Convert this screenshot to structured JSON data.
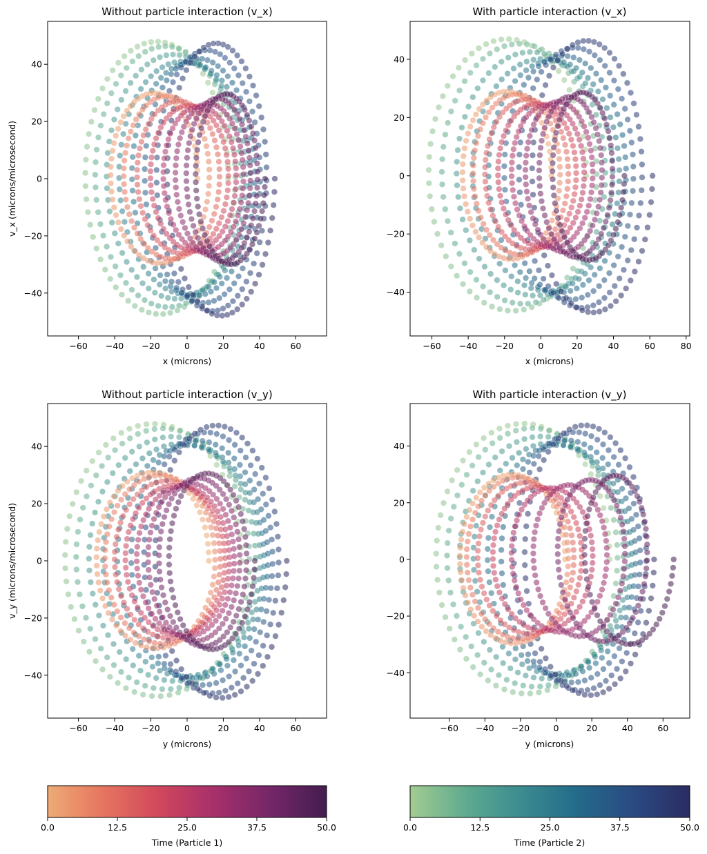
{
  "chart_data": [
    {
      "type": "scatter",
      "title": "Without particle interaction (v_x)",
      "xlabel": "x (microns)",
      "ylabel": "v_x (microns/microsecond)",
      "xlim": [
        -77,
        77
      ],
      "ylim": [
        -55,
        55
      ],
      "xticks": [
        -60,
        -40,
        -20,
        0,
        20,
        40,
        60
      ],
      "yticks": [
        -40,
        -20,
        0,
        20,
        40
      ],
      "grid": false,
      "time_range": [
        0,
        50
      ],
      "series": [
        {
          "particle": 1,
          "colormap": "particle1",
          "amplitude": 33,
          "vmax": 30,
          "center_start": -20,
          "center_end": 25,
          "center_mid": 8,
          "ang_freq": 1.0,
          "turns": 8
        },
        {
          "particle": 2,
          "colormap": "particle2",
          "amplitude": 52,
          "vmax": 48,
          "center_start": -18,
          "center_end": 20,
          "center_mid": 0,
          "ang_freq": 1.0,
          "turns": 8
        }
      ]
    },
    {
      "type": "scatter",
      "title": "With particle interaction (v_x)",
      "xlabel": "x (microns)",
      "ylabel": "",
      "xlim": [
        -72,
        82
      ],
      "ylim": [
        -55,
        53
      ],
      "xticks": [
        -60,
        -40,
        -20,
        0,
        20,
        40,
        60,
        80
      ],
      "yticks": [
        -40,
        -20,
        0,
        20,
        40
      ],
      "grid": false,
      "time_range": [
        0,
        50
      ],
      "series": [
        {
          "particle": 1,
          "colormap": "particle1",
          "amplitude": 33,
          "vmax": 29,
          "center_start": -20,
          "center_end": 28,
          "center_mid": 0,
          "ang_freq": 1.0,
          "turns": 8
        },
        {
          "particle": 2,
          "colormap": "particle2",
          "amplitude": 45,
          "vmax": 47,
          "center_start": -20,
          "center_end": 30,
          "center_mid": 5,
          "ang_freq": 1.0,
          "turns": 8
        }
      ]
    },
    {
      "type": "scatter",
      "title": "Without particle interaction (v_y)",
      "xlabel": "y (microns)",
      "ylabel": "v_y (microns/microsecond)",
      "xlim": [
        -77,
        77
      ],
      "ylim": [
        -55,
        55
      ],
      "xticks": [
        -60,
        -40,
        -20,
        0,
        20,
        40,
        60
      ],
      "yticks": [
        -40,
        -20,
        0,
        20,
        40
      ],
      "grid": false,
      "time_range": [
        0,
        50
      ],
      "series": [
        {
          "particle": 1,
          "colormap": "particle1",
          "amplitude": 32,
          "vmax": 31,
          "center_start": -20,
          "center_end": 15,
          "center_mid": -5,
          "ang_freq": 1.0,
          "turns": 8
        },
        {
          "particle": 2,
          "colormap": "particle2",
          "amplitude": 50,
          "vmax": 48,
          "center_start": -20,
          "center_end": 20,
          "center_mid": 0,
          "ang_freq": 1.0,
          "turns": 8
        }
      ]
    },
    {
      "type": "scatter",
      "title": "With particle interaction (v_y)",
      "xlabel": "y (microns)",
      "ylabel": "",
      "xlim": [
        -82,
        75
      ],
      "ylim": [
        -56,
        55
      ],
      "xticks": [
        -60,
        -40,
        -20,
        0,
        20,
        40,
        60
      ],
      "yticks": [
        -40,
        -20,
        0,
        20,
        40
      ],
      "grid": false,
      "time_range": [
        0,
        50
      ],
      "series": [
        {
          "particle": 1,
          "colormap": "particle1",
          "amplitude": 30,
          "vmax": 30,
          "center_start": -25,
          "center_end": 45,
          "center_mid": -20,
          "ang_freq": 1.0,
          "turns": 8
        },
        {
          "particle": 2,
          "colormap": "particle2",
          "amplitude": 50,
          "vmax": 48,
          "center_start": -20,
          "center_end": 20,
          "center_mid": 0,
          "ang_freq": 1.0,
          "turns": 8
        }
      ]
    }
  ],
  "colorbars": [
    {
      "label": "Time (Particle 1)",
      "range": [
        0,
        50
      ],
      "ticks": [
        "0.0",
        "12.5",
        "25.0",
        "37.5",
        "50.0"
      ],
      "colors": [
        "#edab75",
        "#e6745f",
        "#d0475c",
        "#a62f6b",
        "#742768",
        "#431d4f"
      ]
    },
    {
      "label": "Time (Particle 2)",
      "range": [
        0,
        50
      ],
      "ticks": [
        "0.0",
        "12.5",
        "25.0",
        "37.5",
        "50.0"
      ],
      "colors": [
        "#a3cc91",
        "#5eaa8f",
        "#3b8b90",
        "#236a8a",
        "#2a4a82",
        "#2b2c62"
      ]
    }
  ]
}
